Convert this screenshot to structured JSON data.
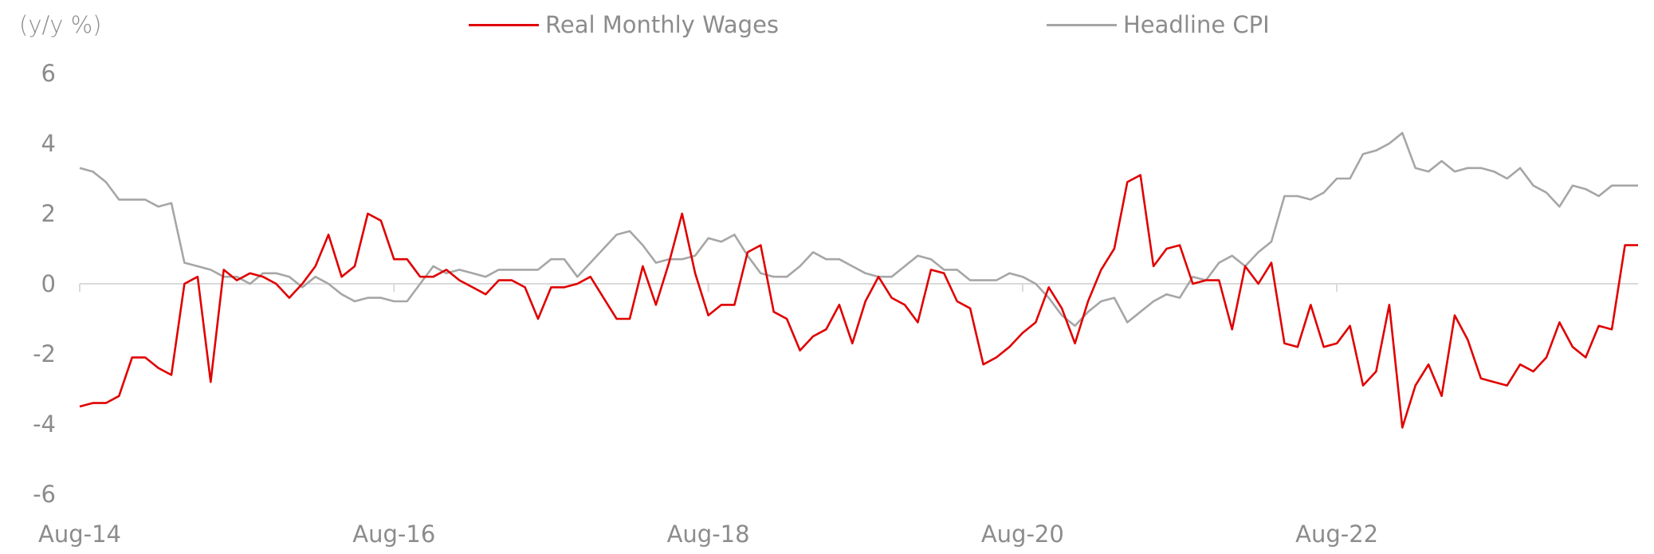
{
  "chart_data": {
    "type": "line",
    "y_unit_label": "(y/y %)",
    "ylim": [
      -6,
      6
    ],
    "y_ticks": [
      "6",
      "4",
      "2",
      "0",
      "-2",
      "-4",
      "-6"
    ],
    "y_tick_values": [
      6,
      4,
      2,
      0,
      -2,
      -4,
      -6
    ],
    "x_tick_labels": [
      "Aug-14",
      "Aug-16",
      "Aug-18",
      "Aug-20",
      "Aug-22"
    ],
    "x_tick_indices": [
      0,
      24,
      48,
      72,
      96
    ],
    "x_range_months": [
      0,
      119
    ],
    "series": [
      {
        "name": "Real Monthly Wages",
        "color": "#e00000",
        "values": [
          -3.5,
          -3.4,
          -3.4,
          -3.2,
          -2.1,
          -2.1,
          -2.4,
          -2.6,
          0,
          0.2,
          -2.8,
          0.4,
          0.1,
          0.3,
          0.2,
          0,
          -0.4,
          0,
          0.5,
          1.4,
          0.2,
          0.5,
          2,
          1.8,
          0.7,
          0.7,
          0.2,
          0.2,
          0.4,
          0.1,
          -0.1,
          -0.3,
          0.1,
          0.1,
          -0.1,
          -1,
          -0.1,
          -0.1,
          0,
          0.2,
          -0.4,
          -1,
          -1,
          0.5,
          -0.6,
          0.6,
          2,
          0.3,
          -0.9,
          -0.6,
          -0.6,
          0.9,
          1.1,
          -0.8,
          -1,
          -1.9,
          -1.5,
          -1.3,
          -0.6,
          -1.7,
          -0.5,
          0.2,
          -0.4,
          -0.6,
          -1.1,
          0.4,
          0.3,
          -0.5,
          -0.7,
          -2.3,
          -2.1,
          -1.8,
          -1.4,
          -1.1,
          -0.1,
          -0.7,
          -1.7,
          -0.5,
          0.4,
          1,
          2.9,
          3.1,
          0.5,
          1,
          1.1,
          0,
          0.1,
          0.1,
          -1.3,
          0.5,
          0,
          0.6,
          -1.7,
          -1.8,
          -0.6,
          -1.8,
          -1.7,
          -1.2,
          -2.9,
          -2.5,
          -0.6,
          -4.1,
          -2.9,
          -2.3,
          -3.2,
          -0.9,
          -1.6,
          -2.7,
          -2.8,
          -2.9,
          -2.3,
          -2.5,
          -2.1,
          -1.1,
          -1.8,
          -2.1,
          -1.2,
          -1.3,
          1.1,
          1.1
        ]
      },
      {
        "name": "Headline CPI",
        "color": "#a6a6a6",
        "values": [
          3.3,
          3.2,
          2.9,
          2.4,
          2.4,
          2.4,
          2.2,
          2.3,
          0.6,
          0.5,
          0.4,
          0.2,
          0.2,
          0,
          0.3,
          0.3,
          0.2,
          -0.1,
          0.2,
          0,
          -0.3,
          -0.5,
          -0.4,
          -0.4,
          -0.5,
          -0.5,
          0,
          0.5,
          0.3,
          0.4,
          0.3,
          0.2,
          0.4,
          0.4,
          0.4,
          0.4,
          0.7,
          0.7,
          0.2,
          0.6,
          1,
          1.4,
          1.5,
          1.1,
          0.6,
          0.7,
          0.7,
          0.8,
          1.3,
          1.2,
          1.4,
          0.8,
          0.3,
          0.2,
          0.2,
          0.5,
          0.9,
          0.7,
          0.7,
          0.5,
          0.3,
          0.2,
          0.2,
          0.5,
          0.8,
          0.7,
          0.4,
          0.4,
          0.1,
          0.1,
          0.1,
          0.3,
          0.2,
          0,
          -0.4,
          -0.9,
          -1.2,
          -0.8,
          -0.5,
          -0.4,
          -1.1,
          -0.8,
          -0.5,
          -0.3,
          -0.4,
          0.2,
          0.1,
          0.6,
          0.8,
          0.5,
          0.9,
          1.2,
          2.5,
          2.5,
          2.4,
          2.6,
          3,
          3,
          3.7,
          3.8,
          4,
          4.3,
          3.3,
          3.2,
          3.5,
          3.2,
          3.3,
          3.3,
          3.2,
          3,
          3.3,
          2.8,
          2.6,
          2.2,
          2.8,
          2.7,
          2.5,
          2.8,
          2.8,
          2.8
        ]
      }
    ],
    "legend_position": "top-center",
    "grid": false
  }
}
